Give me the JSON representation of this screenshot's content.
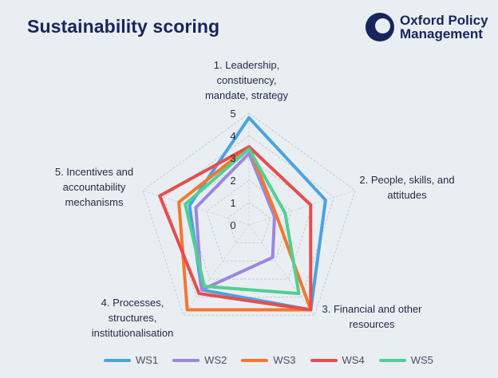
{
  "header": {
    "title": "Sustainability scoring",
    "logo_line1": "Oxford Policy",
    "logo_line2": "Management",
    "brand_color": "#17255c"
  },
  "chart_data": {
    "type": "radar",
    "title": "Sustainability scoring",
    "axes": [
      [
        "1. Leadership,",
        "constituency,",
        "mandate, strategy"
      ],
      [
        "2. People, skills, and",
        "attitudes"
      ],
      [
        "3. Financial and other",
        "resources"
      ],
      [
        "4. Processes,",
        "structures,",
        "institutionalisation"
      ],
      [
        "5. Incentives and",
        "accountability",
        "mechanisms"
      ]
    ],
    "rlim": [
      0,
      5
    ],
    "ticks": [
      "0",
      "1",
      "2",
      "3",
      "4",
      "5"
    ],
    "grid": true,
    "legend_position": "bottom",
    "series": [
      {
        "name": "WS1",
        "color": "#4aa3df",
        "values": [
          4.8,
          3.6,
          4.7,
          3.6,
          2.8
        ]
      },
      {
        "name": "WS2",
        "color": "#9b87e0",
        "values": [
          3.2,
          1.2,
          1.8,
          3.6,
          2.5
        ]
      },
      {
        "name": "WS3",
        "color": "#f4772e",
        "values": [
          3.5,
          1.3,
          4.7,
          4.7,
          3.3
        ]
      },
      {
        "name": "WS4",
        "color": "#e84c4c",
        "values": [
          3.5,
          2.9,
          4.7,
          3.8,
          4.2
        ]
      },
      {
        "name": "WS5",
        "color": "#4fd093",
        "values": [
          3.4,
          1.7,
          3.8,
          3.4,
          3.0
        ]
      }
    ]
  }
}
